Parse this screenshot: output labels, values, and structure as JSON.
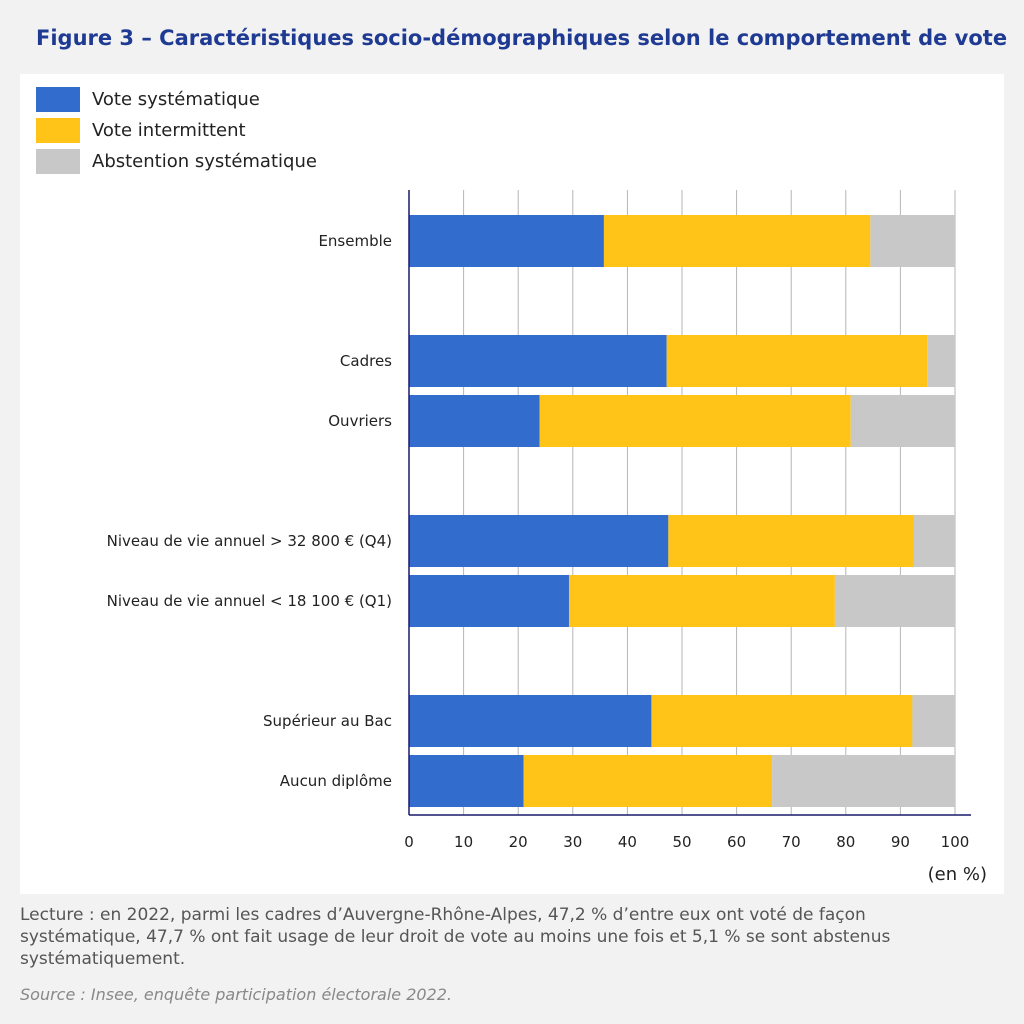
{
  "title": "Figure 3 – Caractéristiques socio-démographiques selon le comportement de vote",
  "chart_data": {
    "type": "bar",
    "orientation": "horizontal",
    "stacked": true,
    "categories": [
      "Ensemble",
      "Cadres",
      "Ouvriers",
      "Niveau de vie annuel > 32 800 € (Q4)",
      "Niveau de vie annuel < 18 100 € (Q1)",
      "Supérieur au Bac",
      "Aucun diplôme"
    ],
    "groups": [
      [
        0
      ],
      [
        1,
        2
      ],
      [
        3,
        4
      ],
      [
        5,
        6
      ]
    ],
    "series": [
      {
        "name": "Vote systématique",
        "color": "#326ccc",
        "values": [
          35.7,
          47.2,
          23.9,
          47.5,
          29.3,
          44.4,
          21.0
        ]
      },
      {
        "name": "Vote intermittent",
        "color": "#ffc417",
        "values": [
          48.8,
          47.7,
          57.0,
          44.9,
          48.7,
          47.8,
          45.5
        ]
      },
      {
        "name": "Abstention systématique",
        "color": "#c8c8c8",
        "values": [
          15.5,
          5.1,
          19.1,
          7.6,
          22.0,
          7.8,
          33.5
        ]
      }
    ],
    "xlim": [
      0,
      100
    ],
    "xticks": [
      0,
      10,
      20,
      30,
      40,
      50,
      60,
      70,
      80,
      90,
      100
    ],
    "xlabel": "(en %)",
    "grid": true,
    "legend_position": "top-left"
  },
  "notes": "Lecture : en 2022, parmi les cadres d’Auvergne-Rhône-Alpes, 47,2 % d’entre eux ont voté de façon systématique, 47,7 % ont fait usage de leur droit de vote au moins une fois et 5,1 % se sont abstenus systématiquement.",
  "source": "Source : Insee, enquête participation électorale 2022."
}
